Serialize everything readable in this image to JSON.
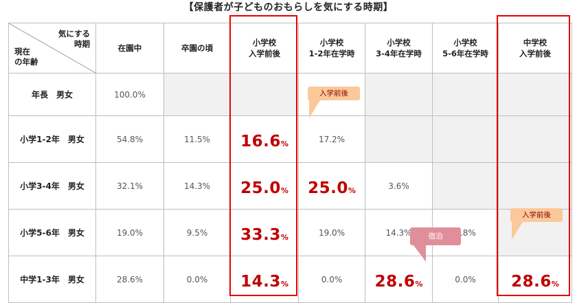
{
  "title": "【保護者が子どものおもらしを気にする時期】",
  "corner": {
    "top_line1": "気にする",
    "top_line2": "時期",
    "bottom_line1": "現在",
    "bottom_line2": "の年齢"
  },
  "columns": [
    {
      "line1": "在園中",
      "line2": ""
    },
    {
      "line1": "卒園の頃",
      "line2": ""
    },
    {
      "line1": "小学校",
      "line2": "入学前後"
    },
    {
      "line1": "小学校",
      "line2": "1-2年在学時"
    },
    {
      "line1": "小学校",
      "line2": "3-4年在学時"
    },
    {
      "line1": "小学校",
      "line2": "5-6年在学時"
    },
    {
      "line1": "中学校",
      "line2": "入学前後"
    }
  ],
  "rows": [
    {
      "label": "年長　男女",
      "cells": [
        "100.0%",
        "",
        "",
        "",
        "",
        "",
        ""
      ]
    },
    {
      "label": "小学1-2年　男女",
      "cells": [
        "54.8%",
        "11.5%",
        "16.6",
        "17.2%",
        "",
        "",
        ""
      ]
    },
    {
      "label": "小学3-4年　男女",
      "cells": [
        "32.1%",
        "14.3%",
        "25.0",
        "25.0",
        "3.6%",
        "",
        ""
      ]
    },
    {
      "label": "小学5-6年　男女",
      "cells": [
        "19.0%",
        "9.5%",
        "33.3",
        "19.0%",
        "14.3%",
        "4.8%",
        ""
      ]
    },
    {
      "label": "中学1-3年　男女",
      "cells": [
        "28.6%",
        "0.0%",
        "14.3",
        "0.0%",
        "28.6",
        "0.0%",
        "28.6"
      ]
    }
  ],
  "percent_sign": "%",
  "callouts": {
    "entry1": "入学前後",
    "entry2": "入学前後",
    "overnight": "宿泊"
  },
  "colors": {
    "highlight": "#c00000",
    "frame": "#e60000",
    "gray_cell": "#f1f1f1",
    "callout_orange": "#fbc89a",
    "callout_pink": "#e08f9a"
  }
}
